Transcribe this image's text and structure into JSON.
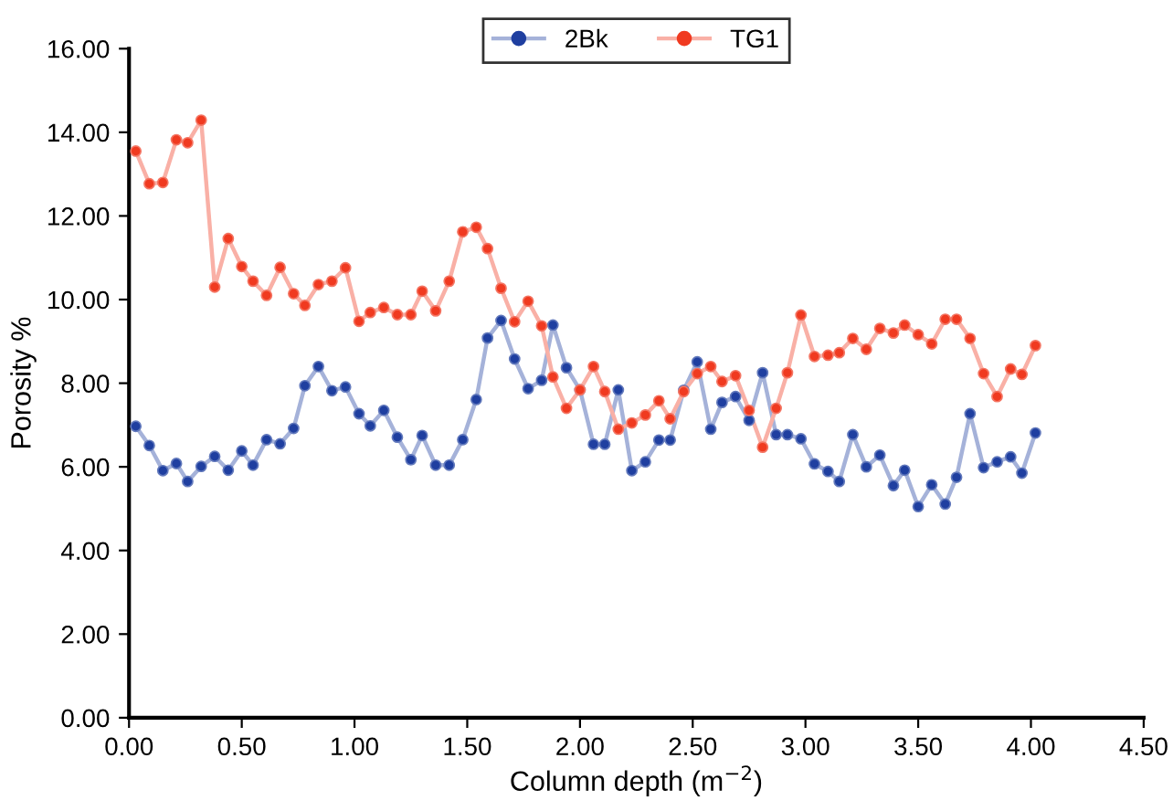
{
  "chart_data": {
    "type": "line",
    "xlabel": "Column depth (m$^{−2}$)",
    "ylabel": "Porosity %",
    "x": [
      0.03,
      0.09,
      0.15,
      0.21,
      0.26,
      0.32,
      0.38,
      0.44,
      0.5,
      0.55,
      0.61,
      0.67,
      0.73,
      0.78,
      0.84,
      0.9,
      0.96,
      1.02,
      1.07,
      1.13,
      1.19,
      1.25,
      1.3,
      1.36,
      1.42,
      1.48,
      1.54,
      1.59,
      1.65,
      1.71,
      1.77,
      1.83,
      1.88,
      1.94,
      2.0,
      2.06,
      2.11,
      2.17,
      2.23,
      2.29,
      2.35,
      2.4,
      2.46,
      2.52,
      2.58,
      2.63,
      2.69,
      2.75,
      2.81,
      2.87,
      2.92,
      2.98,
      3.04,
      3.1,
      3.15,
      3.21,
      3.27,
      3.33,
      3.39,
      3.44,
      3.5,
      3.56,
      3.62,
      3.67,
      3.73,
      3.79,
      3.85,
      3.91,
      3.96,
      4.02
    ],
    "series": [
      {
        "name": "2Bk",
        "color": "#1f3fa0",
        "values": [
          6.97,
          6.51,
          5.91,
          6.08,
          5.65,
          6.01,
          6.25,
          5.92,
          6.38,
          6.04,
          6.65,
          6.55,
          6.92,
          7.94,
          8.4,
          7.82,
          7.91,
          7.27,
          6.98,
          7.35,
          6.71,
          6.17,
          6.75,
          6.04,
          6.04,
          6.65,
          7.61,
          9.08,
          9.5,
          8.58,
          7.87,
          8.07,
          9.39,
          8.37,
          7.84,
          6.54,
          6.54,
          7.84,
          5.91,
          6.12,
          6.64,
          6.64,
          7.83,
          8.51,
          6.9,
          7.54,
          7.68,
          7.11,
          8.25,
          6.77,
          6.77,
          6.67,
          6.07,
          5.89,
          5.65,
          6.77,
          6.0,
          6.28,
          5.55,
          5.92,
          5.05,
          5.57,
          5.11,
          5.75,
          7.27,
          5.98,
          6.12,
          6.24,
          5.85,
          6.81
        ]
      },
      {
        "name": "TG1",
        "color": "#f03a20",
        "values": [
          13.55,
          12.77,
          12.8,
          13.82,
          13.75,
          14.29,
          10.3,
          11.46,
          10.79,
          10.44,
          10.1,
          10.77,
          10.14,
          9.86,
          10.36,
          10.44,
          10.76,
          9.48,
          9.69,
          9.81,
          9.64,
          9.64,
          10.2,
          9.73,
          10.44,
          11.62,
          11.73,
          11.22,
          10.27,
          9.47,
          9.96,
          9.37,
          8.15,
          7.4,
          7.84,
          8.4,
          7.8,
          6.9,
          7.05,
          7.24,
          7.58,
          7.15,
          7.8,
          8.23,
          8.4,
          8.04,
          8.18,
          7.35,
          6.47,
          7.4,
          8.25,
          9.63,
          8.64,
          8.67,
          8.73,
          9.07,
          8.81,
          9.31,
          9.2,
          9.39,
          9.16,
          8.94,
          9.53,
          9.53,
          9.07,
          8.23,
          7.68,
          8.34,
          8.21,
          8.9
        ]
      }
    ],
    "xlim": [
      0,
      4.5
    ],
    "xticks": [
      {
        "value": 0,
        "label": "0.00"
      },
      {
        "value": 0.5,
        "label": "0.50"
      },
      {
        "value": 1,
        "label": "1.00"
      },
      {
        "value": 1.5,
        "label": "1.50"
      },
      {
        "value": 2,
        "label": "2.00"
      },
      {
        "value": 2.5,
        "label": "2.50"
      },
      {
        "value": 3,
        "label": "3.00"
      },
      {
        "value": 3.5,
        "label": "3.50"
      },
      {
        "value": 4,
        "label": "4.00"
      },
      {
        "value": 4.5,
        "label": "4.50"
      }
    ],
    "ylim": [
      0,
      16
    ],
    "yticks": [
      {
        "value": 0,
        "label": "0.00"
      },
      {
        "value": 2,
        "label": "2.00"
      },
      {
        "value": 4,
        "label": "4.00"
      },
      {
        "value": 6,
        "label": "6.00"
      },
      {
        "value": 8,
        "label": "8.00"
      },
      {
        "value": 10,
        "label": "10.00"
      },
      {
        "value": 12,
        "label": "12.00"
      },
      {
        "value": 14,
        "label": "14.00"
      },
      {
        "value": 16,
        "label": "16.00"
      }
    ],
    "grid": false,
    "legend": "top",
    "marker": "circle",
    "line_style": "solid"
  }
}
